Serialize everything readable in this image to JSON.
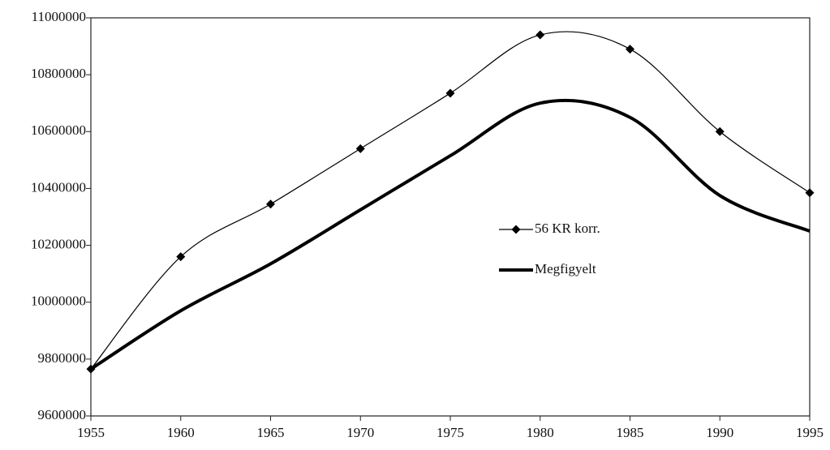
{
  "chart_data": {
    "type": "line",
    "x": [
      1955,
      1960,
      1965,
      1970,
      1975,
      1980,
      1985,
      1990,
      1995
    ],
    "series": [
      {
        "name": "56 KR korr.",
        "color": "#000000",
        "marker": "diamond",
        "line_width": 1.2,
        "values": [
          9765000,
          10160000,
          10345000,
          10540000,
          10735000,
          10940000,
          10890000,
          10600000,
          10385000
        ]
      },
      {
        "name": "Megfigyelt",
        "color": "#000000",
        "marker": "none",
        "line_width": 4,
        "values": [
          9765000,
          9970000,
          10135000,
          10325000,
          10515000,
          10700000,
          10650000,
          10375000,
          10250000
        ]
      }
    ],
    "xlim": [
      1955,
      1995
    ],
    "xticks": [
      1955,
      1960,
      1965,
      1970,
      1975,
      1980,
      1985,
      1990,
      1995
    ],
    "ylim": [
      9600000,
      11000000
    ],
    "yticks": [
      9600000,
      9800000,
      10000000,
      10200000,
      10400000,
      10600000,
      10800000,
      11000000
    ],
    "grid": false,
    "smooth": true,
    "legend": "center"
  }
}
